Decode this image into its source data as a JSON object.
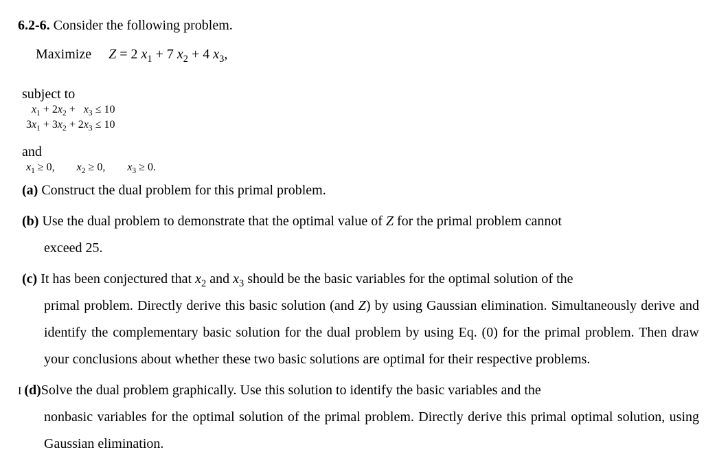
{
  "doc": {
    "font_family": "Times New Roman",
    "text_color": "#000000",
    "background_color": "#ffffff",
    "base_fontsize_pt": 15,
    "small_fontsize_pt": 12
  },
  "header": {
    "number": "6.2-6.",
    "intro": " Consider the following problem."
  },
  "objective": {
    "label": "Maximize",
    "prefix": "Z",
    "eq": " = 2 ",
    "t1v": "x",
    "t1s": "1",
    "p1": " + 7 ",
    "t2v": "x",
    "t2s": "2",
    "p2": " + 4 ",
    "t3v": "x",
    "t3s": "3",
    "tail": ","
  },
  "subject_to": "subject to",
  "constraint1": {
    "a": "  ",
    "c1v": "x",
    "c1s": "1",
    "p1": " + 2",
    "c2v": "x",
    "c2s": "2",
    "p2": " +   ",
    "c3v": "x",
    "c3s": "3",
    "op": " ≤ 10"
  },
  "constraint2": {
    "a": "3",
    "c1v": "x",
    "c1s": "1",
    "p1": " + 3",
    "c2v": "x",
    "c2s": "2",
    "p2": " + 2",
    "c3v": "x",
    "c3s": "3",
    "op": " ≤ 10"
  },
  "and_label": "and",
  "nonneg": {
    "x1v": "x",
    "x1s": "1",
    "x1t": " ≥ 0,",
    "gap1": "        ",
    "x2v": "x",
    "x2s": "2",
    "x2t": " ≥ 0,",
    "gap2": "        ",
    "x3v": "x",
    "x3s": "3",
    "x3t": " ≥ 0."
  },
  "part_a": {
    "label": "(a)",
    "text": " Construct the dual problem for this primal problem."
  },
  "part_b": {
    "label": "(b)",
    "line1_a": " Use the dual problem to demonstrate that the optimal value of ",
    "Z": "Z",
    "line1_b": " for the primal problem cannot",
    "line2": "exceed 25."
  },
  "part_c": {
    "label": "(c)",
    "l1a": " It has been conjectured that ",
    "x2v": "x",
    "x2s": "2",
    "l1b": " and ",
    "x3v": "x",
    "x3s": "3",
    "l1c": " should be the basic variables for the optimal solution of the",
    "l2a": "primal problem. Directly derive this basic solution (and ",
    "Z": "Z",
    "l2b": ") by using Gaussian elimination. Simultaneously derive and identify the complementary basic solution for the dual problem by using Eq. (0) for the primal problem. Then draw your conclusions about whether these two basic solutions are optimal for their respective problems."
  },
  "part_d": {
    "marker": "I ",
    "label": "(d)",
    "text": "Solve the dual problem graphically. Use this solution to identify the basic variables and the nonbasic variables for the optimal solution of the primal problem. Directly derive this primal optimal solution, using Gaussian elimination."
  }
}
